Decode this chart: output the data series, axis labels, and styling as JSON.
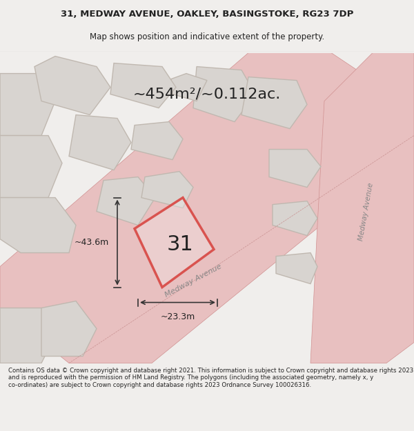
{
  "title_line1": "31, MEDWAY AVENUE, OAKLEY, BASINGSTOKE, RG23 7DP",
  "title_line2": "Map shows position and indicative extent of the property.",
  "area_label": "~454m²/~0.112ac.",
  "plot_number": "31",
  "dim_vertical": "~43.6m",
  "dim_horizontal": "~23.3m",
  "road_label": "Medway Avenue",
  "road_label2": "Medway Avenue",
  "footer_text": "Contains OS data © Crown copyright and database right 2021. This information is subject to Crown copyright and database rights 2023 and is reproduced with the permission of HM Land Registry. The polygons (including the associated geometry, namely x, y co-ordinates) are subject to Crown copyright and database rights 2023 Ordnance Survey 100026316.",
  "bg_color": "#f0eeec",
  "map_bg_color": "#f5f3f0",
  "plot_fill": "#f5f3f0",
  "plot_edge_color": "#d9534f",
  "road_color": "#e8a0a0",
  "building_color": "#d8d4d0",
  "building_edge_color": "#c0b8b0",
  "line_color": "#d9534f",
  "dim_line_color": "#333333",
  "text_color": "#222222",
  "footer_bg": "#ffffff"
}
